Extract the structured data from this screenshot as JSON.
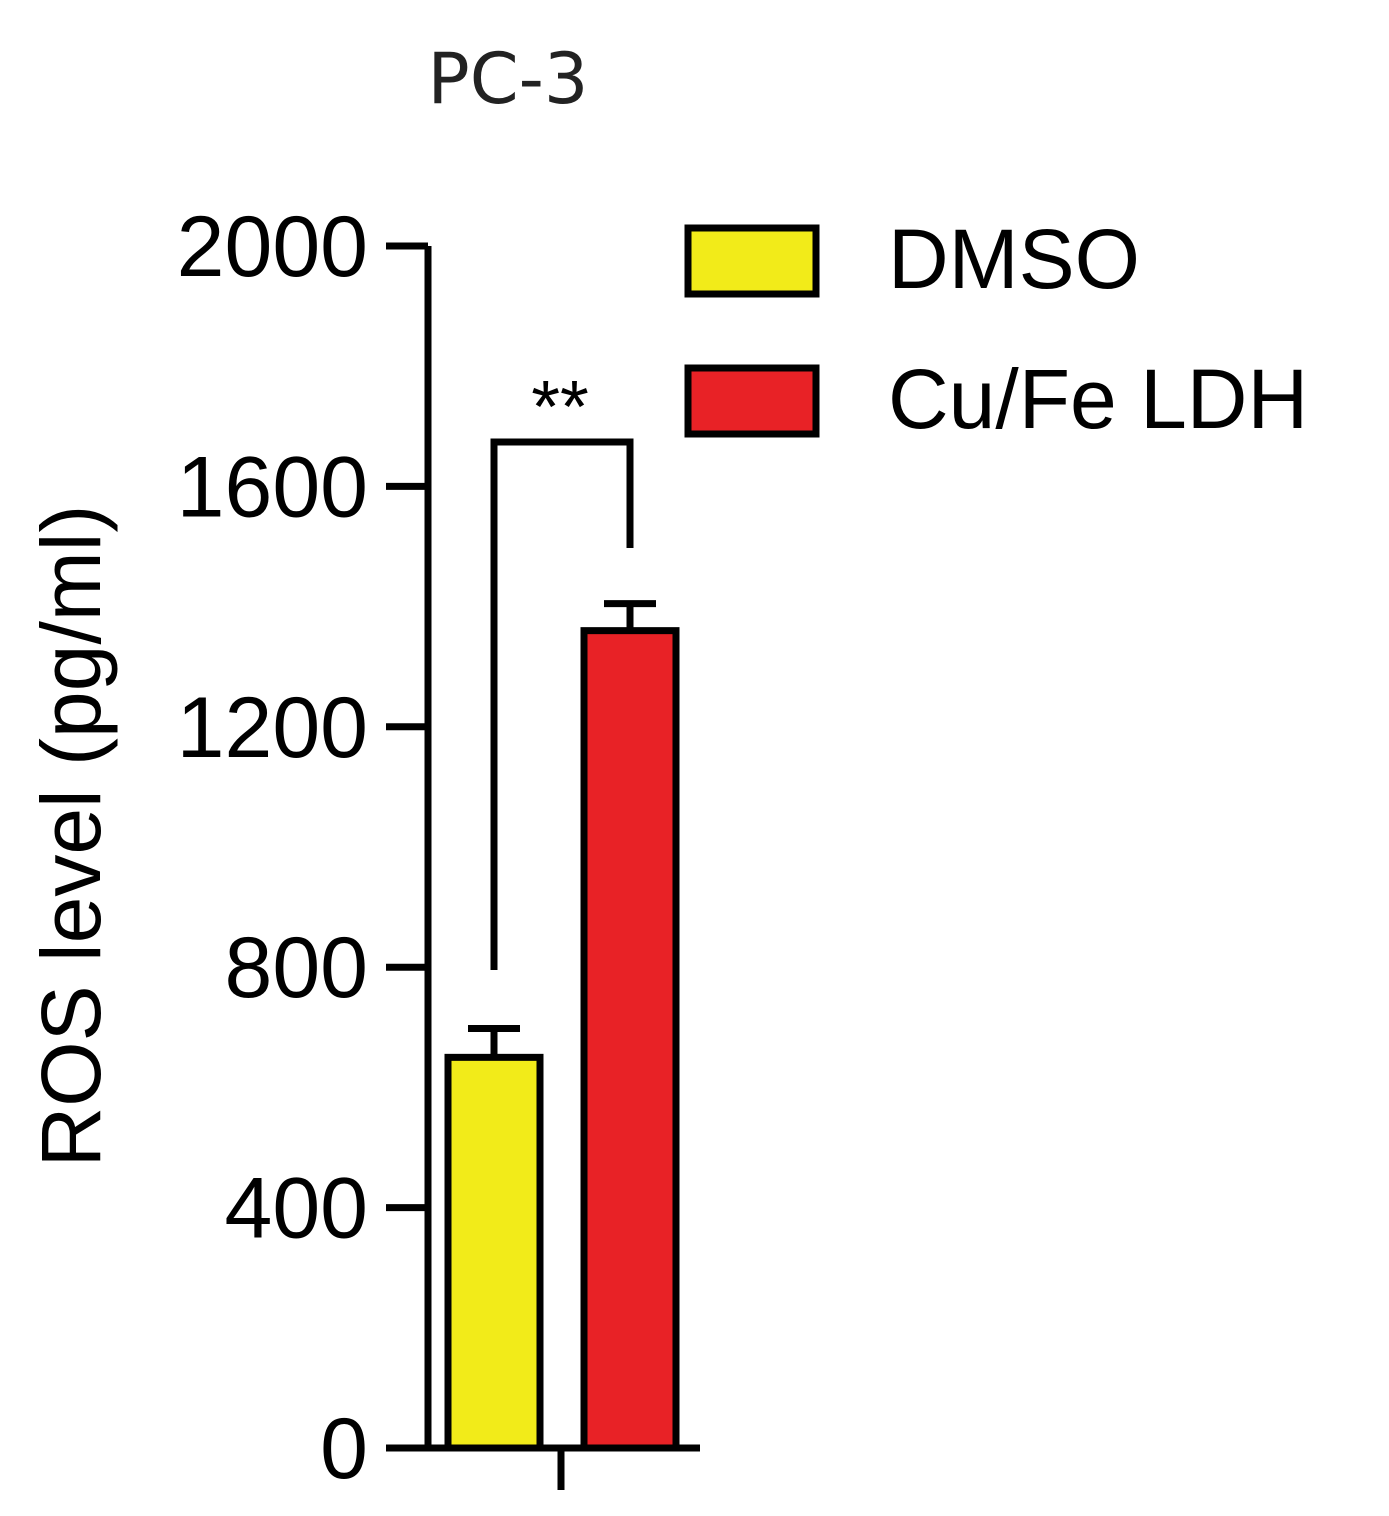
{
  "chart_data": {
    "type": "bar",
    "title": "PC-3",
    "ylabel": "ROS level (pg/ml)",
    "xlabel": "",
    "ylim": [
      0,
      2000
    ],
    "yticks": [
      "0",
      "400",
      "800",
      "1200",
      "1600",
      "2000"
    ],
    "legend_position": "top-right",
    "series": [
      {
        "name": "DMSO",
        "value": 650,
        "error": 48,
        "color": "#f2eb19"
      },
      {
        "name": "Cu/Fe LDH",
        "value": 1360,
        "error": 45,
        "color": "#e82226"
      }
    ],
    "significance": {
      "label": "**",
      "between": [
        "DMSO",
        "Cu/Fe LDH"
      ]
    }
  }
}
